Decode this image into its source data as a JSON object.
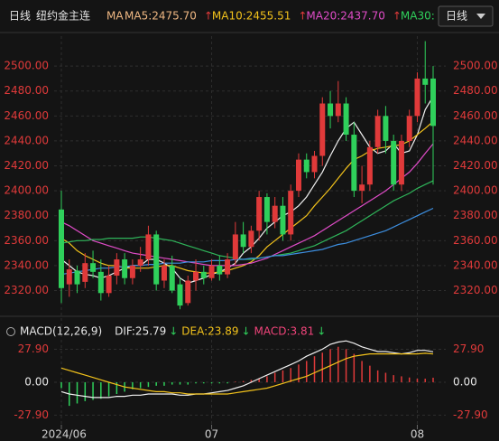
{
  "header": {
    "period": "日线",
    "instrument": "纽约金主连",
    "ma_label": "MA",
    "dropdown": "日线"
  },
  "chart_data": [
    {
      "type": "candlestick",
      "categories": [
        "2024/06",
        null,
        null,
        null,
        null,
        null,
        null,
        null,
        null,
        null,
        null,
        null,
        null,
        null,
        null,
        null,
        null,
        null,
        null,
        "07",
        null,
        null,
        null,
        null,
        null,
        null,
        null,
        null,
        null,
        null,
        null,
        null,
        null,
        null,
        null,
        null,
        null,
        null,
        null,
        null,
        null,
        null,
        null,
        null,
        null,
        "08",
        null,
        null
      ],
      "open": [
        2385,
        2325,
        2336,
        2327,
        2342,
        2335,
        2318,
        2332,
        2345,
        2330,
        2340,
        2345,
        2365,
        2328,
        2340,
        2325,
        2310,
        2328,
        2335,
        2330,
        2340,
        2333,
        2345,
        2365,
        2355,
        2368,
        2395,
        2375,
        2388,
        2365,
        2400,
        2425,
        2415,
        2428,
        2470,
        2460,
        2470,
        2445,
        2400,
        2405,
        2435,
        2460,
        2440,
        2405,
        2440,
        2460,
        2490,
        2490
      ],
      "high": [
        2400,
        2345,
        2340,
        2350,
        2352,
        2345,
        2340,
        2350,
        2350,
        2345,
        2355,
        2372,
        2368,
        2345,
        2348,
        2330,
        2332,
        2345,
        2340,
        2345,
        2348,
        2350,
        2375,
        2375,
        2372,
        2400,
        2398,
        2395,
        2395,
        2405,
        2430,
        2430,
        2432,
        2475,
        2480,
        2488,
        2475,
        2455,
        2420,
        2440,
        2465,
        2468,
        2445,
        2445,
        2465,
        2495,
        2520,
        2500
      ],
      "low": [
        2310,
        2315,
        2318,
        2322,
        2330,
        2312,
        2315,
        2325,
        2325,
        2325,
        2335,
        2340,
        2320,
        2322,
        2318,
        2305,
        2308,
        2320,
        2325,
        2328,
        2328,
        2330,
        2340,
        2350,
        2350,
        2360,
        2365,
        2370,
        2360,
        2360,
        2395,
        2410,
        2410,
        2420,
        2450,
        2455,
        2440,
        2395,
        2390,
        2400,
        2430,
        2430,
        2400,
        2400,
        2435,
        2455,
        2470,
        2405
      ],
      "close": [
        2322,
        2337,
        2325,
        2342,
        2335,
        2318,
        2332,
        2345,
        2330,
        2340,
        2345,
        2365,
        2325,
        2340,
        2320,
        2308,
        2328,
        2335,
        2330,
        2340,
        2333,
        2345,
        2365,
        2355,
        2368,
        2395,
        2375,
        2388,
        2365,
        2400,
        2425,
        2415,
        2428,
        2470,
        2460,
        2470,
        2445,
        2400,
        2405,
        2435,
        2460,
        2440,
        2405,
        2440,
        2460,
        2490,
        2485,
        2452
      ],
      "up_color": "#e03a3a",
      "down_color": "#2fd05b",
      "series": [
        {
          "name": "MA5:2475.70",
          "color": "#f0f0f0",
          "label_color": "#efb883",
          "values": [
            2345,
            2340,
            2335,
            2333,
            2332,
            2330,
            2332,
            2335,
            2338,
            2340,
            2340,
            2345,
            2345,
            2342,
            2338,
            2330,
            2326,
            2328,
            2330,
            2333,
            2335,
            2338,
            2342,
            2350,
            2355,
            2362,
            2370,
            2375,
            2380,
            2383,
            2388,
            2395,
            2405,
            2415,
            2428,
            2440,
            2450,
            2455,
            2445,
            2435,
            2430,
            2432,
            2438,
            2430,
            2432,
            2445,
            2465,
            2475.7
          ]
        },
        {
          "name": "MA10:2455.51",
          "arrow": "↑",
          "color": "#f2c21b",
          "label_color": "#f2c21b",
          "values": [
            2362,
            2358,
            2352,
            2348,
            2345,
            2342,
            2340,
            2340,
            2338,
            2338,
            2338,
            2338,
            2339,
            2340,
            2340,
            2338,
            2336,
            2335,
            2334,
            2334,
            2335,
            2336,
            2338,
            2340,
            2343,
            2348,
            2355,
            2360,
            2365,
            2370,
            2375,
            2380,
            2388,
            2395,
            2402,
            2410,
            2418,
            2425,
            2428,
            2432,
            2434,
            2435,
            2436,
            2437,
            2440,
            2445,
            2450,
            2455.51
          ]
        },
        {
          "name": "MA20:2437.70",
          "arrow": "↑",
          "color": "#e04cc8",
          "label_color": "#e04cc8",
          "values": [
            2375,
            2372,
            2368,
            2364,
            2360,
            2358,
            2356,
            2354,
            2352,
            2350,
            2349,
            2348,
            2347,
            2346,
            2345,
            2344,
            2343,
            2342,
            2341,
            2340,
            2340,
            2340,
            2340,
            2341,
            2342,
            2344,
            2346,
            2349,
            2352,
            2355,
            2358,
            2361,
            2364,
            2368,
            2372,
            2376,
            2380,
            2384,
            2388,
            2392,
            2396,
            2400,
            2405,
            2410,
            2415,
            2422,
            2430,
            2437.7
          ]
        },
        {
          "name": "MA30:",
          "arrow": "↑",
          "color": "#2fb55a",
          "label_color": "#2fd05b",
          "values": [
            2358,
            2359,
            2360,
            2360,
            2361,
            2361,
            2362,
            2362,
            2362,
            2362,
            2363,
            2363,
            2362,
            2361,
            2360,
            2358,
            2356,
            2354,
            2352,
            2350,
            2348,
            2347,
            2346,
            2345,
            2345,
            2346,
            2347,
            2348,
            2349,
            2350,
            2352,
            2354,
            2356,
            2359,
            2362,
            2365,
            2368,
            2372,
            2376,
            2380,
            2384,
            2388,
            2392,
            2395,
            2398,
            2402,
            2405,
            2408
          ]
        },
        {
          "color": "#3d8fe0",
          "values": [
            2333,
            2334,
            2335,
            2336,
            2337,
            2338,
            2338,
            2339,
            2339,
            2340,
            2340,
            2341,
            2341,
            2342,
            2342,
            2342,
            2343,
            2343,
            2343,
            2344,
            2344,
            2344,
            2345,
            2345,
            2346,
            2346,
            2347,
            2348,
            2348,
            2349,
            2350,
            2351,
            2352,
            2353,
            2355,
            2357,
            2358,
            2360,
            2362,
            2364,
            2366,
            2368,
            2371,
            2374,
            2377,
            2380,
            2383,
            2386
          ]
        }
      ],
      "ylim": [
        2303,
        2524
      ],
      "yticks": [
        {
          "value": 2320,
          "label": "2320.00"
        },
        {
          "value": 2340,
          "label": "2340.00"
        },
        {
          "value": 2360,
          "label": "2360.00"
        },
        {
          "value": 2380,
          "label": "2380.00"
        },
        {
          "value": 2400,
          "label": "2400.00"
        },
        {
          "value": 2420,
          "label": "2420.00"
        },
        {
          "value": 2440,
          "label": "2440.00"
        },
        {
          "value": 2460,
          "label": "2460.00"
        },
        {
          "value": 2480,
          "label": "2480.00"
        },
        {
          "value": 2500,
          "label": "2500.00"
        }
      ],
      "grid": true
    },
    {
      "type": "macd",
      "title": "MACD(12,26,9)",
      "name": "MACD:3.81",
      "arrow": "↓",
      "label_color": "#f0447a",
      "up_color": "#e03a3a",
      "down_color": "#2fd05b",
      "values": [
        -5,
        -20,
        -18,
        -16,
        -15,
        -14,
        -12,
        -10,
        -8,
        -6,
        -5,
        -4,
        -3,
        -3,
        -2,
        -2,
        -2,
        -1,
        -1,
        -1,
        -1,
        -1,
        0.5,
        1,
        2,
        3,
        5,
        8,
        10,
        12,
        15,
        18,
        22,
        25,
        28,
        30,
        28,
        24,
        18,
        14,
        10,
        8,
        6,
        5,
        4,
        3,
        3,
        3.81
      ],
      "series": [
        {
          "name": "DIF:25.79",
          "arrow": "↓",
          "color": "#f0f0f0",
          "label_color": "#e8e8e8",
          "values": [
            -8,
            -10,
            -11,
            -12,
            -13,
            -13,
            -13,
            -12,
            -12,
            -11,
            -11,
            -10,
            -10,
            -10,
            -10,
            -11,
            -11,
            -10,
            -10,
            -9,
            -8,
            -7,
            -5,
            -3,
            0,
            3,
            6,
            9,
            12,
            15,
            18,
            22,
            25,
            28,
            32,
            34,
            35,
            33,
            30,
            28,
            26,
            26,
            25,
            24,
            25,
            27,
            27,
            25.79
          ]
        },
        {
          "name": "DEA:23.89",
          "arrow": "↓",
          "color": "#f2c21b",
          "label_color": "#f2c21b",
          "values": [
            12,
            10,
            8,
            6,
            4,
            2,
            0,
            -2,
            -4,
            -5,
            -6,
            -7,
            -8,
            -8,
            -9,
            -9,
            -10,
            -10,
            -10,
            -10,
            -10,
            -10,
            -9,
            -8,
            -7,
            -6,
            -5,
            -3,
            -1,
            1,
            3,
            5,
            8,
            11,
            14,
            17,
            20,
            22,
            23,
            24,
            24,
            24,
            24,
            24,
            24,
            24,
            24.5,
            23.89
          ]
        }
      ],
      "ylim": [
        -36,
        34.4
      ],
      "yticks": [
        {
          "value": 27.9,
          "label": "27.90"
        },
        {
          "value": 0,
          "label": "0.00"
        },
        {
          "value": -27.9,
          "label": "-27.90"
        }
      ],
      "grid": true
    }
  ]
}
